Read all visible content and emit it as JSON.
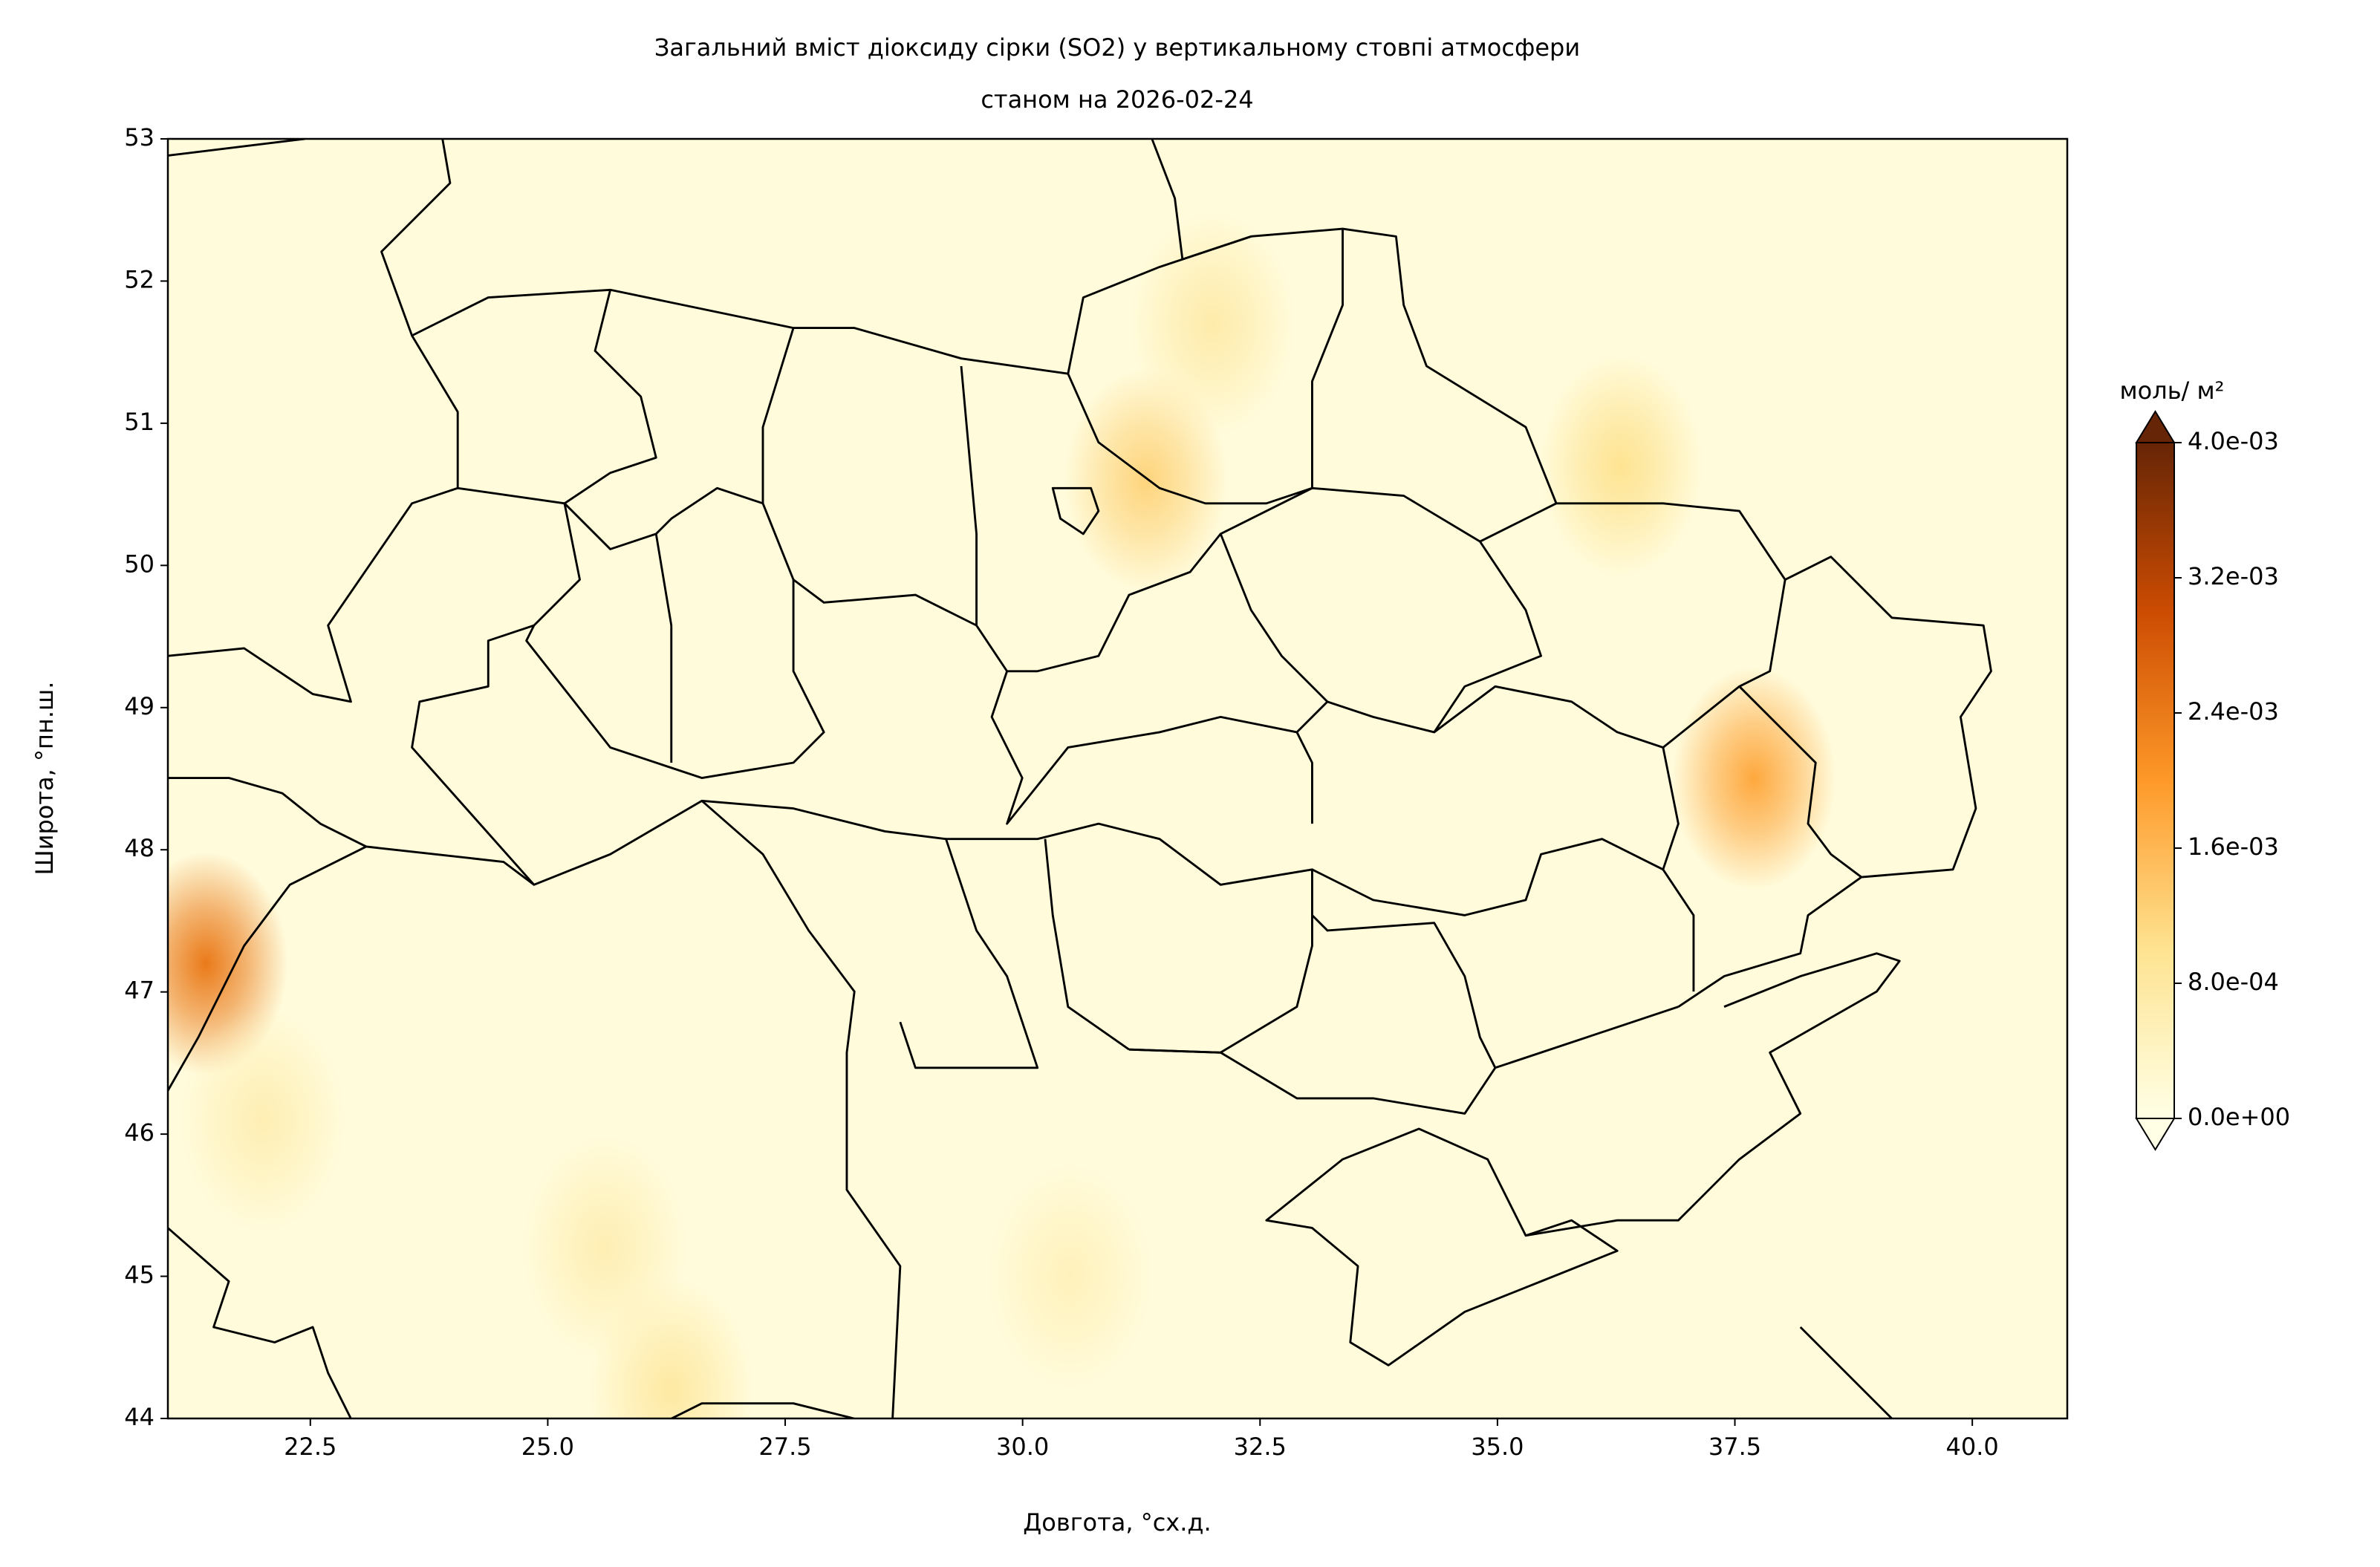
{
  "chart_data": {
    "type": "map",
    "title": "Загальний вміст діоксиду сірки (SO2) у вертикальному стовпі атмосфери",
    "subtitle": "станом на 2026-02-24",
    "x_label": "Довгота, °сх.д.",
    "y_label": "Широта, °пн.ш.",
    "xlim": [
      21,
      41
    ],
    "ylim": [
      44,
      53
    ],
    "xticks": [
      22.5,
      {
        "value": 25,
        "label": "25.0"
      },
      27.5,
      {
        "value": 30,
        "label": "30.0"
      },
      32.5,
      {
        "value": 35,
        "label": "35.0"
      },
      37.5,
      {
        "value": 40,
        "label": "40.0"
      }
    ],
    "yticks": [
      44,
      45,
      46,
      47,
      48,
      49,
      50,
      51,
      52,
      53
    ],
    "colorbar": {
      "label": "моль/ м²",
      "lim": [
        0,
        0.004
      ],
      "ticks": [
        {
          "value": 0,
          "label": "0.0e+00"
        },
        {
          "value": 0.0008,
          "label": "8.0e-04"
        },
        {
          "value": 0.0016,
          "label": "1.6e-03"
        },
        {
          "value": 0.0024,
          "label": "2.4e-03"
        },
        {
          "value": 0.0032,
          "label": "3.2e-03"
        },
        {
          "value": 0.004,
          "label": "4.0e-03"
        }
      ],
      "colors": [
        "#ffffe5",
        "#fee391",
        "#fe9929",
        "#cc4c02",
        "#662506"
      ]
    },
    "hotspots": {
      "x": [
        21.4,
        37.7,
        31.3,
        36.3,
        32.0,
        26.3,
        25.6,
        22.0,
        30.5
      ],
      "y": [
        47.2,
        48.5,
        50.6,
        50.7,
        51.7,
        44.2,
        45.2,
        46.1,
        45.0
      ],
      "values": [
        0.0024,
        0.0018,
        0.0012,
        0.001,
        0.0007,
        0.0008,
        0.0006,
        0.0006,
        0.0005
      ]
    }
  }
}
